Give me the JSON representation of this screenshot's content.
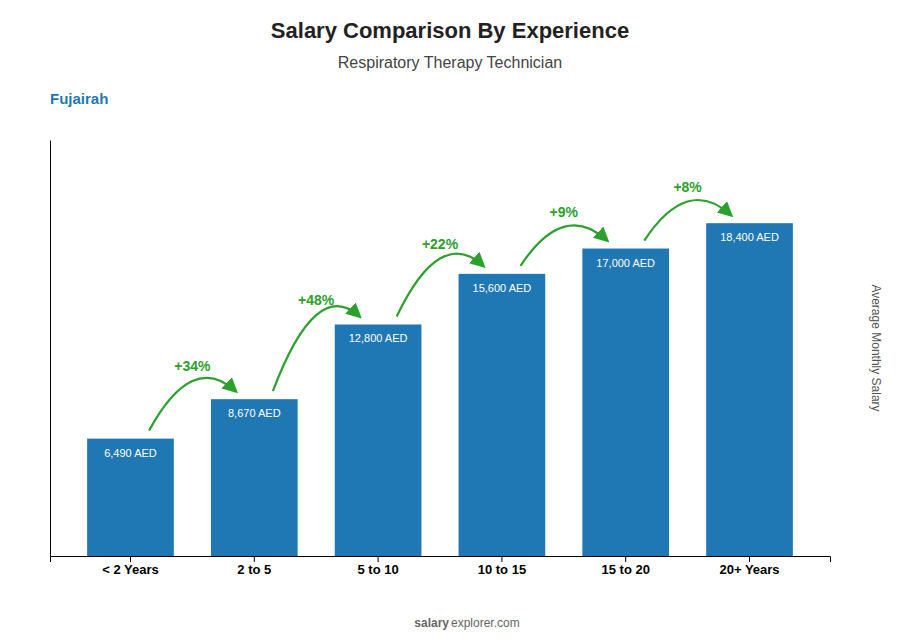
{
  "chart_data": {
    "type": "bar",
    "title": "Salary Comparison By Experience",
    "subtitle": "Respiratory Therapy Technician",
    "city": "Fujairah",
    "ylabel": "Average Monthly Salary",
    "categories": [
      "< 2 Years",
      "2 to 5",
      "5 to 10",
      "10 to 15",
      "15 to 20",
      "20+ Years"
    ],
    "values": [
      6490,
      8670,
      12800,
      15600,
      17000,
      18400
    ],
    "value_labels": [
      "6,490 AED",
      "8,670 AED",
      "12,800 AED",
      "15,600 AED",
      "17,000 AED",
      "18,400 AED"
    ],
    "data_labels": true,
    "change_labels": [
      "+34%",
      "+48%",
      "+22%",
      "+9%",
      "+8%"
    ],
    "ylim": [
      0,
      23000
    ],
    "tick_labels": "x",
    "grid": false,
    "footer": [
      "salary",
      "explorer.com"
    ]
  }
}
